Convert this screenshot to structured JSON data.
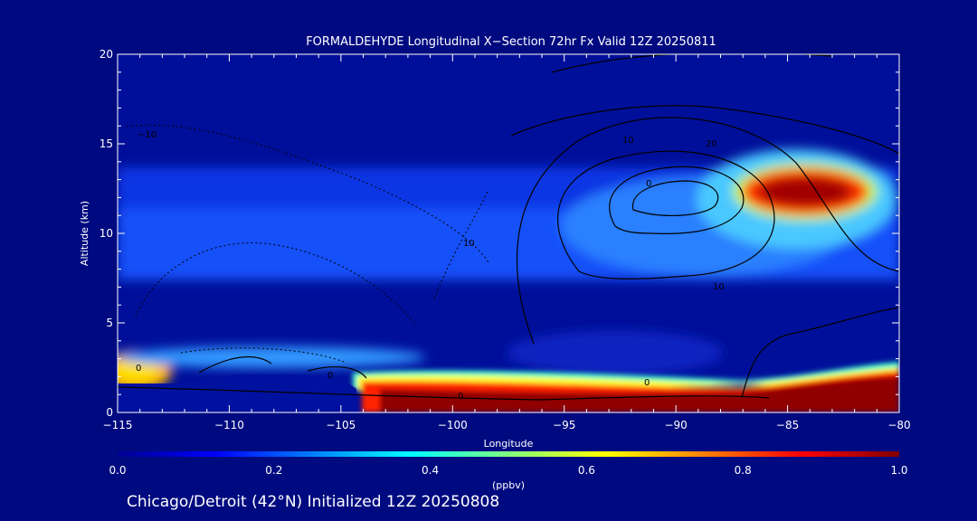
{
  "chart_data": {
    "type": "heatmap",
    "title": "FORMALDEHYDE Longitudinal X−Section 72hr  Fx Valid 12Z 20250811",
    "xlabel": "Longitude",
    "ylabel": "Altitude (km)",
    "xlim": [
      -115,
      -80
    ],
    "ylim": [
      0,
      20
    ],
    "x_ticks": [
      "−115",
      "−110",
      "−105",
      "−100",
      "−95",
      "−90",
      "−85",
      "−80"
    ],
    "x_tick_values": [
      -115,
      -110,
      -105,
      -100,
      -95,
      -90,
      -85,
      -80
    ],
    "y_ticks": [
      "0",
      "5",
      "10",
      "15",
      "20"
    ],
    "y_tick_values": [
      0,
      5,
      10,
      15,
      20
    ],
    "colorbar": {
      "label": "(ppbv)",
      "range": [
        0.0,
        1.0
      ],
      "ticks": [
        "0.0",
        "0.2",
        "0.4",
        "0.6",
        "0.8",
        "1.0"
      ],
      "tick_values": [
        0.0,
        0.2,
        0.4,
        0.6,
        0.8,
        1.0
      ],
      "colormap": "jet"
    },
    "contour_labels": [
      "10",
      "0",
      "0",
      "0",
      "10",
      "0",
      "10",
      "20",
      "0",
      "−10"
    ],
    "features": [
      {
        "name": "upper-tropospheric maximum",
        "lon_range": [
          -87,
          -81
        ],
        "alt_range": [
          11,
          13.5
        ],
        "value": 1.0
      },
      {
        "name": "boundary-layer maximum",
        "lon_range": [
          -104,
          -80
        ],
        "alt_range": [
          0.5,
          2
        ],
        "value": 1.0
      },
      {
        "name": "western surface maximum",
        "lon_range": [
          -115,
          -113
        ],
        "alt_range": [
          1.5,
          3.5
        ],
        "value": 0.7
      }
    ],
    "grid": false,
    "background_color": "#000a80"
  },
  "footer": "Chicago/Detroit (42°N) Initialized 12Z 20250808"
}
